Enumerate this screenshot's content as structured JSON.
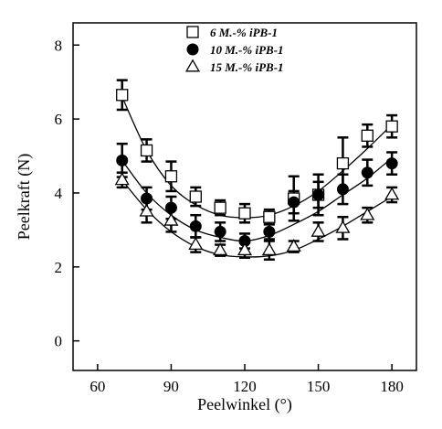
{
  "chart_data": {
    "type": "scatter",
    "xlabel": "Peelwinkel (°)",
    "ylabel": "Peelkraft (N)",
    "xlim": [
      50,
      190
    ],
    "ylim": [
      -0.8,
      8.6
    ],
    "x_ticks": [
      60,
      90,
      120,
      150,
      180
    ],
    "y_ticks": [
      0,
      2,
      4,
      6,
      8
    ],
    "x_tick_labels": [
      "60",
      "90",
      "120",
      "150",
      "180"
    ],
    "y_tick_labels": [
      "0",
      "2",
      "4",
      "6",
      "8"
    ],
    "x": [
      70,
      80,
      90,
      100,
      110,
      120,
      130,
      140,
      150,
      160,
      170,
      180
    ],
    "grid": false,
    "legend_position": "top-center",
    "trend_lines": true,
    "series": [
      {
        "name": "6 M.-% iPB-1",
        "marker": "open-square",
        "values": [
          6.65,
          5.15,
          4.45,
          3.9,
          3.6,
          3.45,
          3.35,
          3.85,
          3.95,
          4.8,
          5.55,
          5.8
        ],
        "errors": [
          0.4,
          0.3,
          0.4,
          0.25,
          0.2,
          0.25,
          0.2,
          0.6,
          0.55,
          0.7,
          0.3,
          0.3
        ],
        "fit": [
          6.6,
          5.15,
          4.2,
          3.68,
          3.4,
          3.33,
          3.4,
          3.65,
          4.05,
          4.6,
          5.2,
          5.85
        ]
      },
      {
        "name": "10 M.-% iPB-1",
        "marker": "filled-circle",
        "values": [
          4.88,
          3.85,
          3.6,
          3.1,
          2.95,
          2.7,
          2.95,
          3.75,
          3.95,
          4.1,
          4.55,
          4.8
        ],
        "errors": [
          0.45,
          0.3,
          0.3,
          0.3,
          0.25,
          0.2,
          0.2,
          0.3,
          0.35,
          0.4,
          0.35,
          0.3
        ],
        "fit": [
          4.88,
          4.0,
          3.4,
          3.0,
          2.8,
          2.7,
          2.85,
          3.15,
          3.5,
          3.95,
          4.4,
          4.95
        ]
      },
      {
        "name": "15 M.-% iPB-1",
        "marker": "open-triangle",
        "values": [
          4.35,
          3.5,
          3.25,
          2.6,
          2.45,
          2.45,
          2.45,
          2.55,
          2.95,
          3.05,
          3.4,
          3.95
        ],
        "errors": [
          0.2,
          0.3,
          0.3,
          0.2,
          0.15,
          0.2,
          0.25,
          0.15,
          0.25,
          0.3,
          0.2,
          0.2
        ],
        "fit": [
          4.35,
          3.55,
          2.95,
          2.55,
          2.33,
          2.27,
          2.3,
          2.45,
          2.75,
          3.1,
          3.5,
          3.9
        ]
      }
    ]
  }
}
